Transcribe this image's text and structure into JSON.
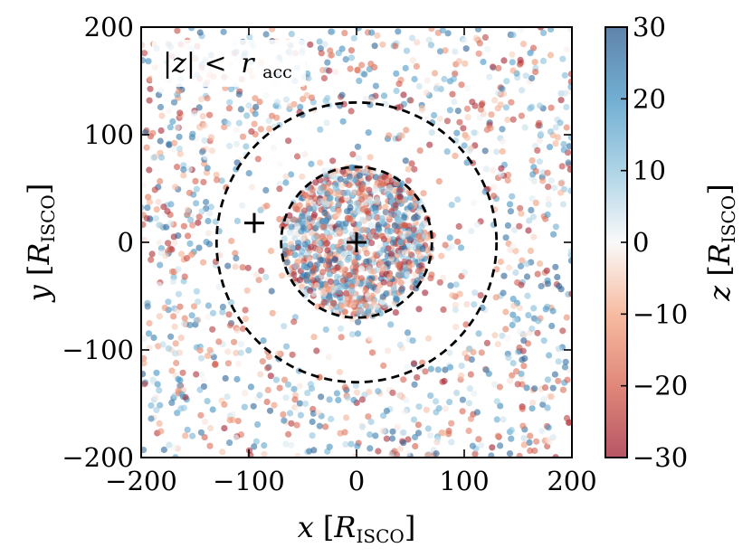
{
  "chart_data": {
    "type": "scatter",
    "xlabel": {
      "var": "x",
      "unit": "R",
      "unit_sub": "ISCO"
    },
    "ylabel": {
      "var": "y",
      "unit": "R",
      "unit_sub": "ISCO"
    },
    "colorbar_label": {
      "var": "z",
      "unit": "R",
      "unit_sub": "ISCO"
    },
    "xlim": [
      -200,
      200
    ],
    "ylim": [
      -200,
      200
    ],
    "clim": [
      -30,
      30
    ],
    "xticks": [
      -200,
      -100,
      0,
      100,
      200
    ],
    "yticks": [
      -200,
      -100,
      0,
      100,
      200
    ],
    "cticks": [
      -30,
      -20,
      -10,
      0,
      10,
      20,
      30
    ],
    "colormap": "RdBu",
    "colormap_stops": [
      "#9e1d32",
      "#d6604d",
      "#f4a582",
      "#f7f7f7",
      "#92c5de",
      "#4393c3",
      "#2b5b8f"
    ],
    "annotation": {
      "lhs": "|z| <",
      "rhs": "r",
      "rhs_sub": "acc"
    },
    "circles": [
      {
        "center": [
          0,
          0
        ],
        "radius": 70,
        "style": "dashed"
      },
      {
        "center": [
          0,
          0
        ],
        "radius": 130,
        "style": "dashed"
      }
    ],
    "markers": [
      {
        "symbol": "+",
        "x": 0,
        "y": 0
      },
      {
        "symbol": "+",
        "x": -95,
        "y": 18
      }
    ],
    "point_density": {
      "inner_disk_radius": 70,
      "inner_count": 1100,
      "outer_count": 1150,
      "gap_inner": 70,
      "gap_outer": 130,
      "gap_count": 160
    },
    "grid": false,
    "legend": "none"
  }
}
